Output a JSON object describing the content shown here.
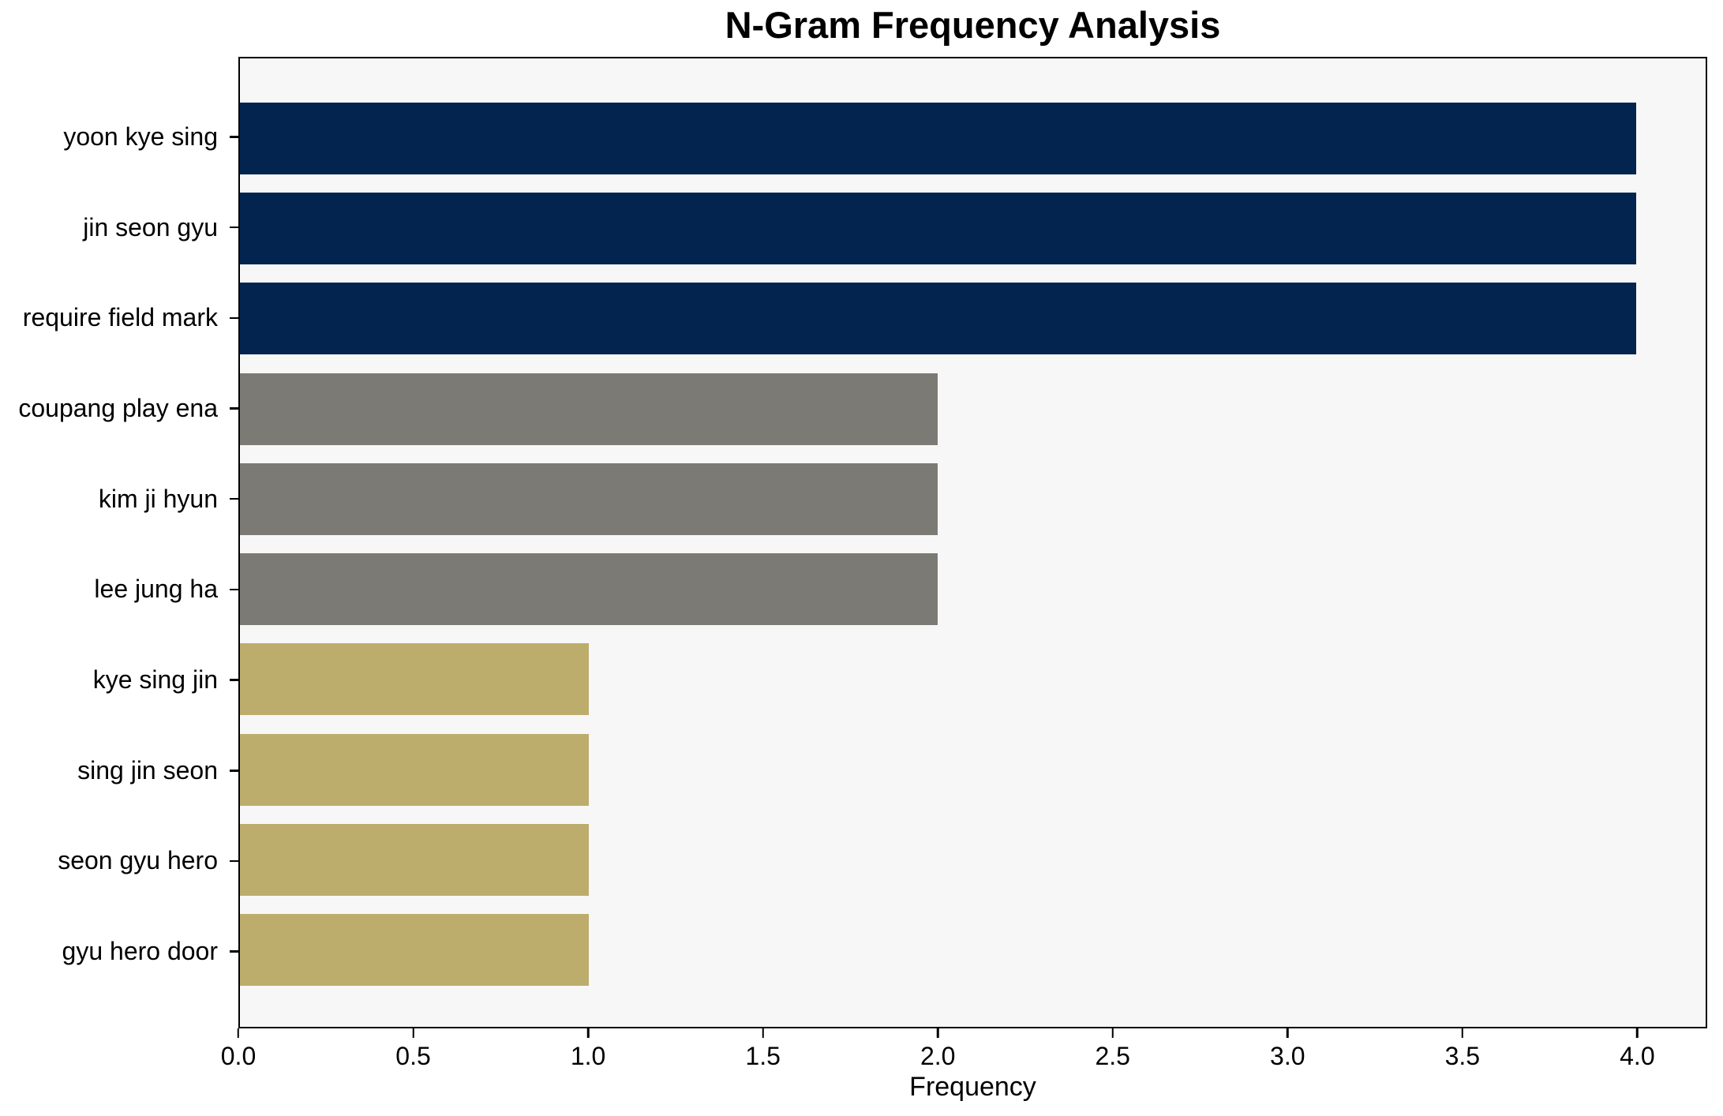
{
  "chart_data": {
    "type": "bar",
    "orientation": "horizontal",
    "title": "N-Gram Frequency Analysis",
    "xlabel": "Frequency",
    "ylabel": "",
    "categories": [
      "yoon kye sing",
      "jin seon gyu",
      "require field mark",
      "coupang play ena",
      "kim ji hyun",
      "lee jung ha",
      "kye sing jin",
      "sing jin seon",
      "seon gyu hero",
      "gyu hero door"
    ],
    "values": [
      4,
      4,
      4,
      2,
      2,
      2,
      1,
      1,
      1,
      1
    ],
    "bar_colors": [
      "#02244e",
      "#02244e",
      "#02244e",
      "#7b7a74",
      "#7b7a74",
      "#7b7a74",
      "#bcad6d",
      "#bcad6d",
      "#bcad6d",
      "#bcad6d"
    ],
    "xlim": [
      0,
      4.2
    ],
    "xticks": [
      0,
      0.5,
      1,
      1.5,
      2,
      2.5,
      3,
      3.5,
      4
    ],
    "xtick_labels": [
      "0.0",
      "0.5",
      "1.0",
      "1.5",
      "2.0",
      "2.5",
      "3.0",
      "3.5",
      "4.0"
    ],
    "grid": false,
    "legend": null,
    "colors": {
      "plot_background": "#f7f7f7",
      "figure_background": "#ffffff",
      "axis": "#000000"
    }
  }
}
